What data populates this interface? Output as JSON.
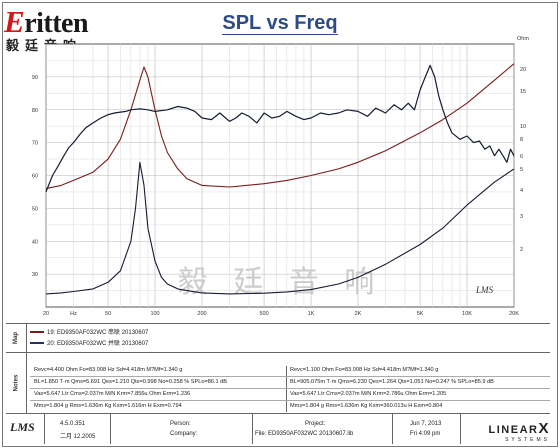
{
  "brand": {
    "word_mark_initial": "E",
    "word_mark_rest": "ritten",
    "chinese_name": "毅廷音响",
    "watermark": "毅 廷 音 响"
  },
  "chart_data": {
    "type": "line",
    "title": "SPL vs Freq",
    "x_scale": "log",
    "xlim": [
      20,
      20000
    ],
    "ylim_left": [
      20,
      100
    ],
    "ylim_right_label": "Ohm",
    "x_tick_labels": [
      "20",
      "Hz",
      "50",
      "100",
      "200",
      "500",
      "1K",
      "2K",
      "5K",
      "10K",
      "20K"
    ],
    "y_left_ticks": [
      30,
      40,
      50,
      60,
      70,
      80,
      90
    ],
    "y_right_ticks": [
      "20",
      "15",
      "10",
      "8",
      "6",
      "5",
      "4",
      "3",
      "2"
    ],
    "grid": true,
    "corner_mark": "LMS",
    "series": [
      {
        "name": "19: ED9350AF032WC 串联 20130607",
        "color": "#7a1c1c",
        "role": "impedance",
        "x": [
          20,
          25,
          30,
          40,
          50,
          60,
          70,
          80,
          85,
          90,
          100,
          110,
          120,
          140,
          160,
          200,
          300,
          500,
          700,
          1000,
          1500,
          2000,
          3000,
          5000,
          7000,
          10000,
          15000,
          20000
        ],
        "y": [
          56,
          57,
          58.5,
          61,
          65,
          71,
          80,
          89,
          93,
          90,
          80,
          72,
          67,
          62,
          59,
          57,
          56.5,
          57.5,
          58.5,
          60,
          62,
          64,
          67.5,
          73,
          77,
          82,
          89,
          94
        ]
      },
      {
        "name": "20: ED9350AF032WC 并联 20130607",
        "color": "#151c33",
        "role": "impedance",
        "x": [
          20,
          25,
          30,
          40,
          50,
          60,
          70,
          75,
          80,
          85,
          90,
          100,
          110,
          120,
          140,
          160,
          200,
          300,
          500,
          700,
          1000,
          1500,
          2000,
          3000,
          5000,
          7000,
          10000,
          15000,
          20000
        ],
        "y": [
          24,
          24.3,
          24.7,
          25.5,
          27.5,
          31,
          40,
          50,
          64,
          57,
          44,
          34,
          29,
          27,
          25.5,
          25,
          24.3,
          24,
          24.2,
          24.6,
          25.3,
          27,
          29,
          33,
          39,
          44,
          51,
          58,
          62
        ]
      },
      {
        "name": "SPL",
        "color": "#151c33",
        "role": "spl",
        "x": [
          20,
          22,
          24,
          26,
          28,
          30,
          33,
          36,
          40,
          45,
          50,
          55,
          60,
          65,
          70,
          80,
          90,
          100,
          120,
          140,
          160,
          180,
          200,
          230,
          260,
          300,
          330,
          360,
          400,
          450,
          500,
          560,
          630,
          700,
          800,
          900,
          1000,
          1150,
          1300,
          1500,
          1700,
          2000,
          2300,
          2600,
          3000,
          3400,
          3800,
          4200,
          4600,
          5000,
          5400,
          5800,
          6200,
          6600,
          7000,
          7500,
          8000,
          9000,
          10000,
          11000,
          12000,
          13000,
          14000,
          15000,
          16000,
          17000,
          18000,
          19000,
          20000
        ],
        "y": [
          55,
          60,
          63,
          66,
          68.5,
          70,
          72.5,
          74.5,
          76,
          77.5,
          78.5,
          79,
          79.3,
          79.5,
          80,
          80.3,
          80,
          79.5,
          80,
          81,
          80.5,
          79.5,
          77.5,
          77,
          79,
          76.5,
          77.5,
          79,
          78,
          76,
          79,
          77.5,
          78,
          79.5,
          78,
          77,
          77.5,
          79,
          78.5,
          79,
          80,
          79.5,
          78,
          80.5,
          79,
          81.5,
          80,
          82,
          80,
          86,
          90,
          93.5,
          90,
          84,
          80,
          76,
          73,
          71,
          72,
          70,
          70.5,
          68,
          69,
          66,
          68,
          66,
          64,
          68,
          66
        ]
      }
    ]
  },
  "map_panel": {
    "label": "Map",
    "entries": [
      {
        "text": "19: ED9350AF032WC 串联 20130607",
        "color": "#7a1c1c"
      },
      {
        "text": "20: ED9350AF032WC 并联 20130607",
        "color": "#2a3060"
      }
    ]
  },
  "notes_panel": {
    "label": "Notes",
    "left": [
      "Revc=4.400 Ohm  Fo=83.008 Hz  Sd=4.418m M?Mf=1.340 g",
      "BL=1.850 T·m  Qms=5.691  Qes=1.210  Qts=0.998  No=0.258 %  SPLo=86.1 dB",
      "Vas=5.647 Ltr  Cms=2.037m M/N  Krm=7.856u Ohm  Erm=1.236",
      "Mms=1.804 g  Rms=1.636m Kg  Kxm=1.616m H  Exm=0.794"
    ],
    "right": [
      "Revc=1.100 Ohm  Fo=83.008 Hz  Sd=4.418m M?Mf=1.340 g",
      "BL=905.075m T·m  Qms=6.230  Qes=1.264  Qts=1.051  No=0.247 %  SPLo=85.9 dB",
      "Vas=5.647 Ltr  Cms=2.037m M/N  Krm=2.786u Ohm  Erm=1.205",
      "Mms=1.804 g  Rms=1.636m Kg  Kxm=360.013u H  Exm=0.804"
    ]
  },
  "footer": {
    "version": "4.5.0.351",
    "build": "二月 12.2005",
    "person_label": "Person:",
    "company_label": "Company:",
    "project_label": "Project:",
    "file_label": "File: ED9350AF032WC  20130607.lib",
    "date": "Jun 7, 2013",
    "time": "Fri  4:09 pm",
    "brand": "LINEAR",
    "brand_x": "X",
    "brand_sub": "SYSTEMS",
    "lms": "LMS"
  }
}
